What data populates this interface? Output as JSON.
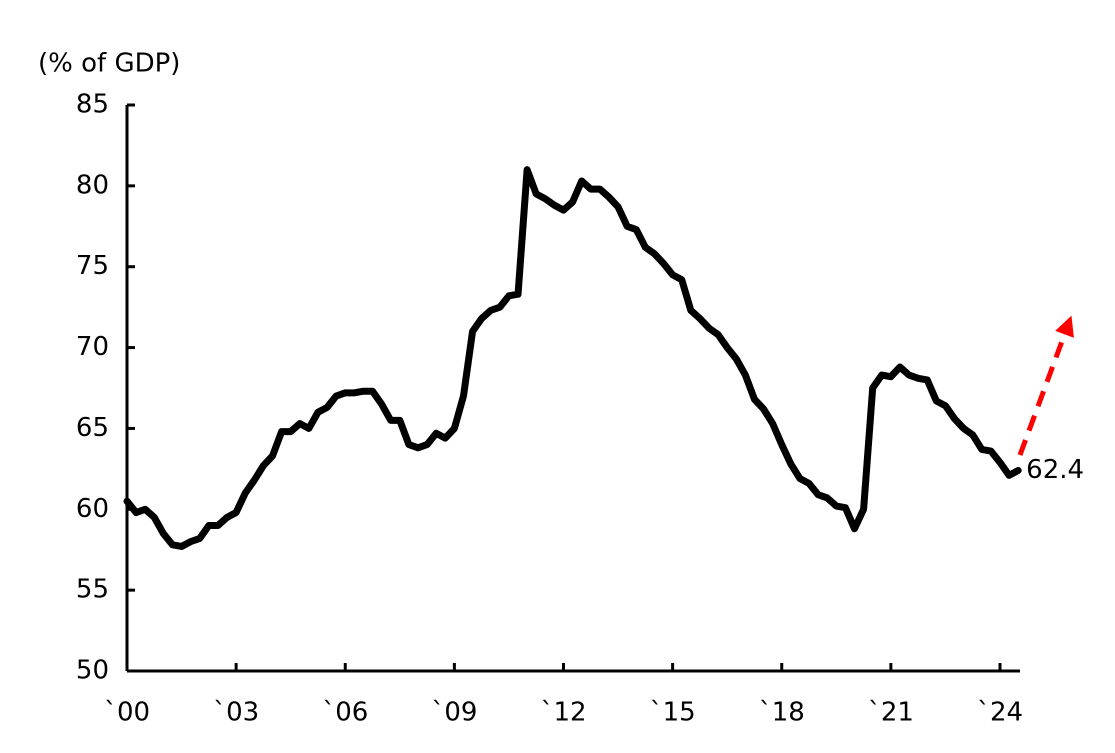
{
  "chart_data": {
    "type": "line",
    "ylabel": "(% of GDP)",
    "annotation": "62.4",
    "color": "#000000",
    "x": [
      2000,
      2000.25,
      2000.5,
      2000.75,
      2001,
      2001.25,
      2001.5,
      2001.75,
      2002,
      2002.25,
      2002.5,
      2002.75,
      2003,
      2003.25,
      2003.5,
      2003.75,
      2004,
      2004.25,
      2004.5,
      2004.75,
      2005,
      2005.25,
      2005.5,
      2005.75,
      2006,
      2006.25,
      2006.5,
      2006.75,
      2007,
      2007.25,
      2007.5,
      2007.75,
      2008,
      2008.25,
      2008.5,
      2008.75,
      2009,
      2009.25,
      2009.5,
      2009.75,
      2010,
      2010.25,
      2010.5,
      2010.75,
      2011,
      2011.25,
      2011.5,
      2011.75,
      2012,
      2012.25,
      2012.5,
      2012.75,
      2013,
      2013.25,
      2013.5,
      2013.75,
      2014,
      2014.25,
      2014.5,
      2014.75,
      2015,
      2015.25,
      2015.5,
      2015.75,
      2016,
      2016.25,
      2016.5,
      2016.75,
      2017,
      2017.25,
      2017.5,
      2017.75,
      2018,
      2018.25,
      2018.5,
      2018.75,
      2019,
      2019.25,
      2019.5,
      2019.75,
      2020,
      2020.25,
      2020.5,
      2020.75,
      2021,
      2021.25,
      2021.5,
      2021.75,
      2022,
      2022.25,
      2022.5,
      2022.75,
      2023,
      2023.25,
      2023.5,
      2023.75,
      2024,
      2024.25,
      2024.5
    ],
    "values": [
      60.5,
      59.8,
      60.0,
      59.5,
      58.5,
      57.8,
      57.7,
      58.0,
      58.2,
      59.0,
      59.0,
      59.5,
      59.8,
      61.0,
      61.8,
      62.7,
      63.3,
      64.8,
      64.8,
      65.3,
      65.0,
      66.0,
      66.3,
      67.0,
      67.2,
      67.2,
      67.3,
      67.3,
      66.5,
      65.5,
      65.5,
      64.0,
      63.8,
      64.0,
      64.7,
      64.4,
      65.0,
      67.0,
      71.0,
      71.8,
      72.3,
      72.5,
      73.2,
      73.3,
      81.0,
      79.5,
      79.2,
      78.8,
      78.5,
      79.0,
      80.3,
      79.8,
      79.8,
      79.3,
      78.7,
      77.5,
      77.3,
      76.2,
      75.8,
      75.2,
      74.5,
      74.2,
      72.3,
      71.8,
      71.2,
      70.8,
      70.0,
      69.3,
      68.3,
      66.8,
      66.2,
      65.3,
      64.0,
      62.8,
      61.9,
      61.6,
      60.9,
      60.7,
      60.2,
      60.1,
      58.8,
      60.0,
      67.5,
      68.3,
      68.2,
      68.8,
      68.3,
      68.1,
      68.0,
      66.7,
      66.4,
      65.6,
      65.0,
      64.6,
      63.7,
      63.6,
      62.9,
      62.1,
      62.4
    ],
    "xlim": [
      2000,
      2024.55
    ],
    "xticks": [
      {
        "value": 2000,
        "label": "`00"
      },
      {
        "value": 2003,
        "label": "`03"
      },
      {
        "value": 2006,
        "label": "`06"
      },
      {
        "value": 2009,
        "label": "`09"
      },
      {
        "value": 2012,
        "label": "`12"
      },
      {
        "value": 2015,
        "label": "`15"
      },
      {
        "value": 2018,
        "label": "`18"
      },
      {
        "value": 2021,
        "label": "`21"
      },
      {
        "value": 2024,
        "label": "`24"
      }
    ],
    "ylim": [
      50,
      85
    ],
    "yticks": [
      50,
      55,
      60,
      65,
      70,
      75,
      80,
      85
    ],
    "grid": false
  }
}
